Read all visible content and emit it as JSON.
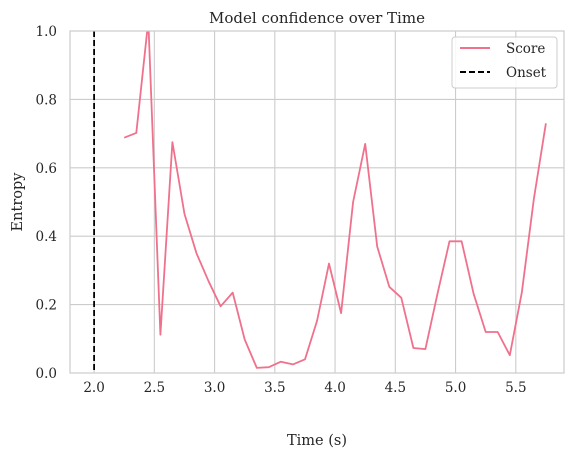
{
  "chart_data": {
    "type": "line",
    "title": "Model confidence over Time",
    "xlabel": "Time (s)",
    "ylabel": "Entropy",
    "xlim": [
      1.8,
      5.9
    ],
    "ylim": [
      0.0,
      1.0
    ],
    "grid": true,
    "legend_position": "top-right",
    "x_ticks": [
      2.0,
      2.5,
      3.0,
      3.5,
      4.0,
      4.5,
      5.0,
      5.5
    ],
    "x_tick_labels": [
      "2.0",
      "2.5",
      "3.0",
      "3.5",
      "4.0",
      "4.5",
      "5.0",
      "5.5"
    ],
    "y_ticks": [
      0.0,
      0.2,
      0.4,
      0.6,
      0.8,
      1.0
    ],
    "y_tick_labels": [
      "0.0",
      "0.2",
      "0.4",
      "0.6",
      "0.8",
      "1.0"
    ],
    "series": [
      {
        "name": "Score",
        "color": "#f0718c",
        "x": [
          2.25,
          2.35,
          2.45,
          2.55,
          2.65,
          2.75,
          2.85,
          2.95,
          3.05,
          3.15,
          3.25,
          3.35,
          3.45,
          3.55,
          3.65,
          3.75,
          3.85,
          3.95,
          4.05,
          4.15,
          4.25,
          4.35,
          4.45,
          4.55,
          4.65,
          4.75,
          4.85,
          4.95,
          5.05,
          5.15,
          5.25,
          5.35,
          5.45,
          5.55,
          5.65,
          5.75
        ],
        "y": [
          0.688,
          0.702,
          1.03,
          0.112,
          0.675,
          0.465,
          0.35,
          0.268,
          0.195,
          0.235,
          0.098,
          0.015,
          0.017,
          0.033,
          0.025,
          0.04,
          0.152,
          0.32,
          0.175,
          0.5,
          0.67,
          0.37,
          0.252,
          0.22,
          0.073,
          0.07,
          0.232,
          0.385,
          0.385,
          0.232,
          0.12,
          0.12,
          0.052,
          0.235,
          0.51,
          0.73
        ]
      }
    ],
    "vlines": [
      {
        "name": "Onset",
        "x": 2.0,
        "color": "#000000",
        "style": "dashed"
      }
    ]
  }
}
